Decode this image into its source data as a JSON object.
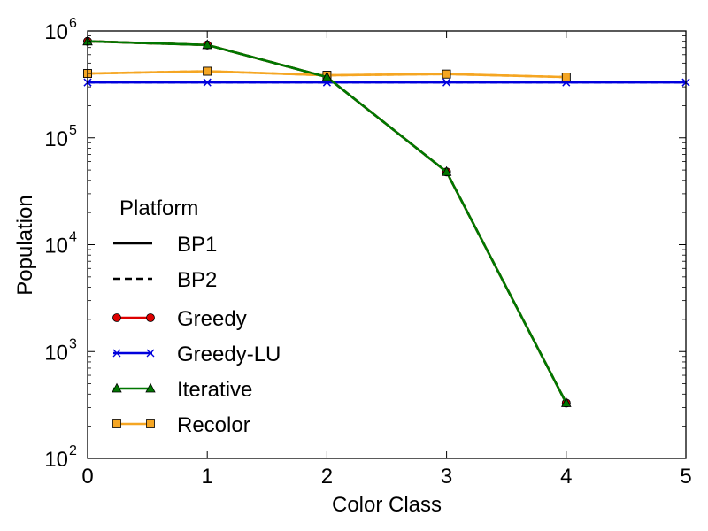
{
  "chart_data": {
    "type": "line",
    "xlabel": "Color Class",
    "ylabel": "Population",
    "xlim": [
      0,
      5
    ],
    "ylim": [
      100,
      1000000
    ],
    "yscale": "log",
    "grid": false,
    "x_ticks": [
      "0",
      "1",
      "2",
      "3",
      "4",
      "5"
    ],
    "y_ticks": [
      {
        "base": "10",
        "exp": "2"
      },
      {
        "base": "10",
        "exp": "3"
      },
      {
        "base": "10",
        "exp": "4"
      },
      {
        "base": "10",
        "exp": "5"
      },
      {
        "base": "10",
        "exp": "6"
      }
    ],
    "legend": {
      "placement": "center-left",
      "title": "Platform",
      "platform_entries": [
        {
          "name": "BP1",
          "linestyle": "solid"
        },
        {
          "name": "BP2",
          "linestyle": "dashed"
        }
      ],
      "method_entries": [
        {
          "name": "Greedy",
          "color": "#dd0000",
          "marker": "circle"
        },
        {
          "name": "Greedy-LU",
          "color": "#0000dd",
          "marker": "x"
        },
        {
          "name": "Iterative",
          "color": "#007700",
          "marker": "triangle"
        },
        {
          "name": "Recolor",
          "color": "#f5a623",
          "marker": "square"
        }
      ]
    },
    "series": [
      {
        "name": "Greedy",
        "platform": "BP1",
        "color": "#dd0000",
        "marker": "circle",
        "linestyle": "solid",
        "x": [
          0,
          1,
          2,
          3,
          4
        ],
        "values": [
          800000,
          740000,
          370000,
          48000,
          330
        ]
      },
      {
        "name": "Greedy",
        "platform": "BP2",
        "color": "#dd0000",
        "marker": "circle",
        "linestyle": "dashed",
        "x": [
          0,
          1,
          2,
          3,
          4
        ],
        "values": [
          800000,
          740000,
          370000,
          48000,
          330
        ]
      },
      {
        "name": "Greedy-LU",
        "platform": "BP1",
        "color": "#0000dd",
        "marker": "x",
        "linestyle": "solid",
        "x": [
          0,
          1,
          2,
          3,
          4,
          5
        ],
        "values": [
          330000,
          330000,
          330000,
          330000,
          330000,
          330000
        ]
      },
      {
        "name": "Greedy-LU",
        "platform": "BP2",
        "color": "#0000dd",
        "marker": "x",
        "linestyle": "dashed",
        "x": [
          0,
          1,
          2,
          3,
          4,
          5
        ],
        "values": [
          330000,
          330000,
          330000,
          330000,
          330000,
          330000
        ]
      },
      {
        "name": "Recolor",
        "platform": "BP1",
        "color": "#f5a623",
        "marker": "square",
        "linestyle": "solid",
        "x": [
          0,
          1,
          2,
          3,
          4
        ],
        "values": [
          400000,
          420000,
          385000,
          395000,
          370000
        ]
      },
      {
        "name": "Recolor",
        "platform": "BP2",
        "color": "#f5a623",
        "marker": "square",
        "linestyle": "dashed",
        "x": [
          0,
          1,
          2,
          3,
          4
        ],
        "values": [
          400000,
          420000,
          385000,
          395000,
          370000
        ]
      },
      {
        "name": "Iterative",
        "platform": "BP1",
        "color": "#007700",
        "marker": "triangle",
        "linestyle": "solid",
        "x": [
          0,
          1,
          2,
          3,
          4
        ],
        "values": [
          800000,
          740000,
          370000,
          48000,
          330
        ]
      },
      {
        "name": "Iterative",
        "platform": "BP2",
        "color": "#007700",
        "marker": "triangle",
        "linestyle": "dashed",
        "x": [
          0,
          1,
          2,
          3,
          4
        ],
        "values": [
          800000,
          740000,
          370000,
          48000,
          330
        ]
      }
    ]
  }
}
